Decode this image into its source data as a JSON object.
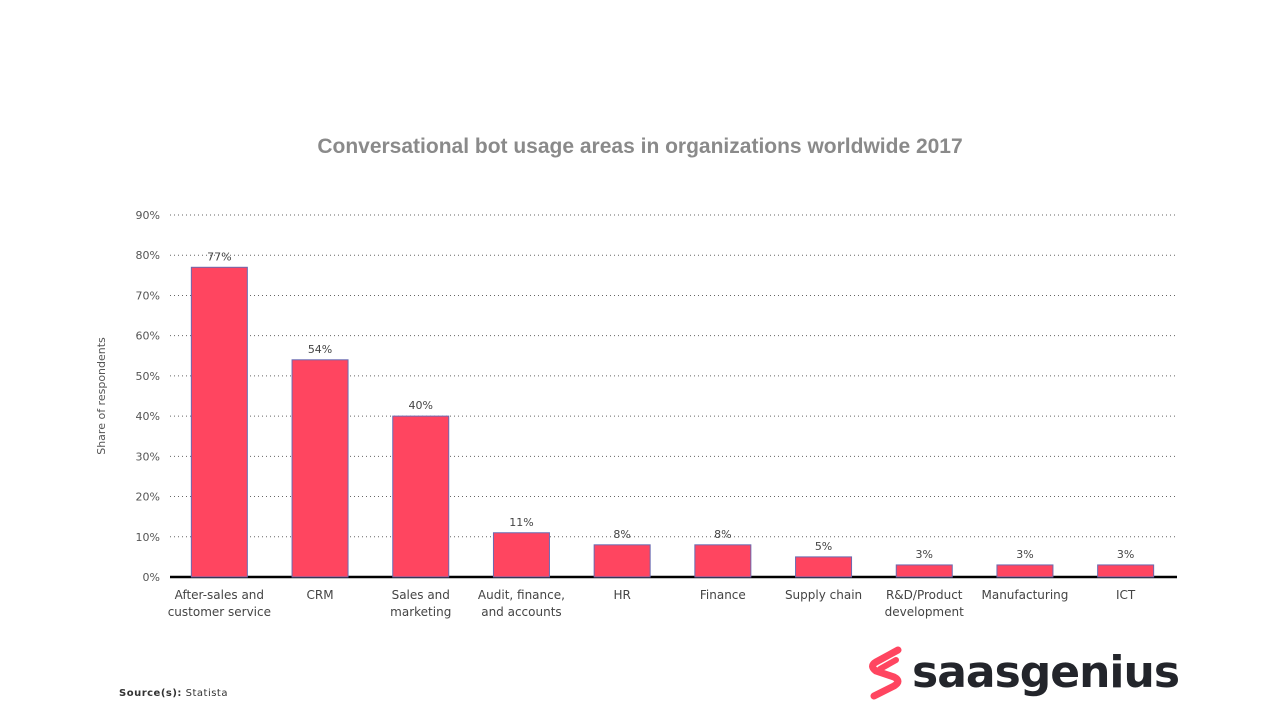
{
  "chart_data": {
    "type": "bar",
    "title": "Conversational bot usage areas in organizations worldwide 2017",
    "xlabel": "",
    "ylabel": "Share of respondents",
    "ylim": [
      0,
      90
    ],
    "yticks": [
      "0%",
      "10%",
      "20%",
      "30%",
      "40%",
      "50%",
      "60%",
      "70%",
      "80%",
      "90%"
    ],
    "grid": true,
    "categories": [
      [
        "After-sales and",
        "customer service"
      ],
      [
        "CRM"
      ],
      [
        "Sales and",
        "marketing"
      ],
      [
        "Audit, finance,",
        "and accounts"
      ],
      [
        "HR"
      ],
      [
        "Finance"
      ],
      [
        "Supply chain"
      ],
      [
        "R&D/Product",
        "development"
      ],
      [
        "Manufacturing"
      ],
      [
        "ICT"
      ]
    ],
    "values": [
      77,
      54,
      40,
      11,
      8,
      8,
      5,
      3,
      3,
      3
    ],
    "data_labels": [
      "77%",
      "54%",
      "40%",
      "11%",
      "8%",
      "8%",
      "5%",
      "3%",
      "3%",
      "3%"
    ],
    "bar_color": "#ff4560",
    "bar_border_color": "#6a6ab0"
  },
  "source": {
    "label": "Source(s):",
    "value": "Statista"
  },
  "logo": {
    "text": "saasgenius",
    "color": "#ff4560"
  }
}
